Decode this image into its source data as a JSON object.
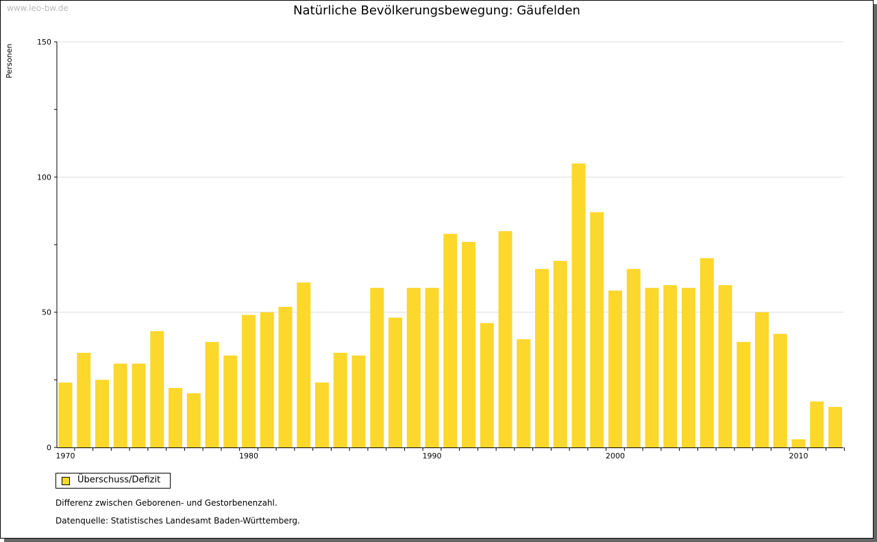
{
  "watermark": "www.leo-bw.de",
  "chart_data": {
    "type": "bar",
    "title": "Natürliche Bevölkerungsbewegung: Gäufelden",
    "xlabel": "",
    "ylabel": "Personen",
    "ylim": [
      0,
      150
    ],
    "yticks": [
      0,
      50,
      100,
      150
    ],
    "xtick_labels": [
      "1970",
      "1980",
      "1990",
      "2000",
      "2010"
    ],
    "grid": true,
    "legend_placement": "bottom-left",
    "categories": [
      1970,
      1971,
      1972,
      1973,
      1974,
      1975,
      1976,
      1977,
      1978,
      1979,
      1980,
      1981,
      1982,
      1983,
      1984,
      1985,
      1986,
      1987,
      1988,
      1989,
      1990,
      1991,
      1992,
      1993,
      1994,
      1995,
      1996,
      1997,
      1998,
      1999,
      2000,
      2001,
      2002,
      2003,
      2004,
      2005,
      2006,
      2007,
      2008,
      2009,
      2010,
      2011,
      2012
    ],
    "series": [
      {
        "name": "Überschuss/Defizit",
        "color": "#fcd72c",
        "values": [
          24,
          35,
          25,
          31,
          31,
          43,
          22,
          20,
          39,
          34,
          49,
          50,
          52,
          61,
          24,
          35,
          34,
          59,
          48,
          59,
          59,
          79,
          76,
          46,
          80,
          40,
          66,
          69,
          105,
          87,
          58,
          66,
          59,
          60,
          59,
          70,
          60,
          39,
          50,
          42,
          3,
          17,
          15
        ]
      }
    ]
  },
  "notes": [
    "Differenz zwischen Geborenen- und Gestorbenenzahl.",
    "Datenquelle: Statistisches Landesamt Baden-Württemberg."
  ]
}
